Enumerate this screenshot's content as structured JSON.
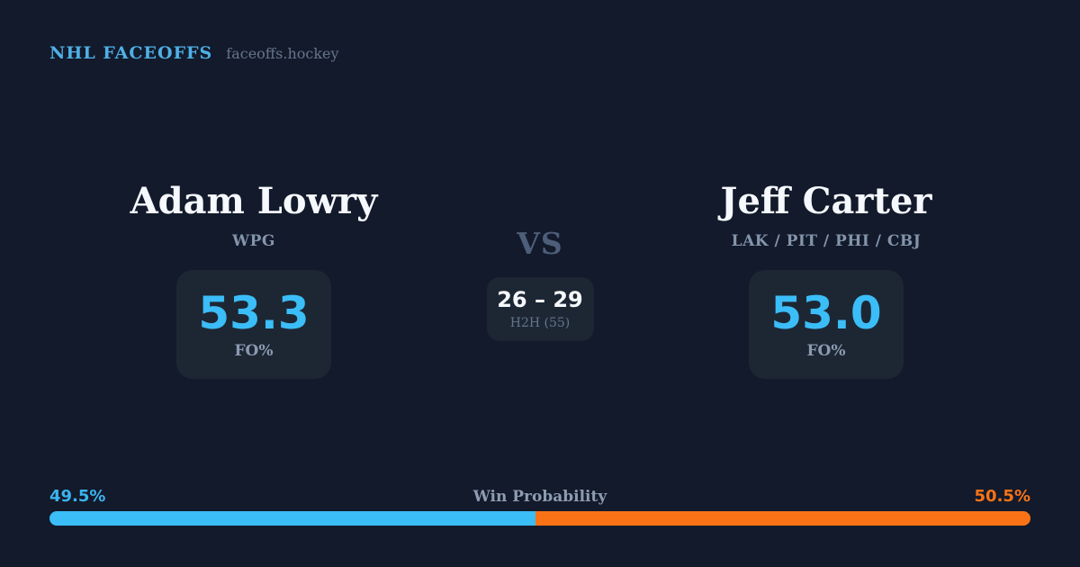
{
  "brand": {
    "title": "NHL FACEOFFS",
    "site": "faceoffs.hockey"
  },
  "matchup": {
    "left": {
      "name": "Adam Lowry",
      "teams": "WPG",
      "value": "53.3",
      "value_label": "FO%"
    },
    "versus": {
      "label": "VS",
      "h2h_score": "26 – 29",
      "h2h_label": "H2H (55)"
    },
    "right": {
      "name": "Jeff Carter",
      "teams": "LAK / PIT / PHI / CBJ",
      "value": "53.0",
      "value_label": "FO%"
    }
  },
  "win_probability": {
    "title": "Win Probability",
    "left_pct_label": "49.5%",
    "right_pct_label": "50.5%",
    "left_value": 49.5,
    "right_value": 50.5,
    "left_bar_style": "width:49.5%",
    "right_bar_style": "width:50.5%"
  },
  "colors": {
    "background": "#121a2b",
    "card": "#1d2734",
    "accent_blue": "#3bbdf8",
    "accent_orange": "#f97316",
    "brand_blue": "#4fb0e6",
    "text_white": "#f5f8fc",
    "text_muted": "#8494ab"
  }
}
